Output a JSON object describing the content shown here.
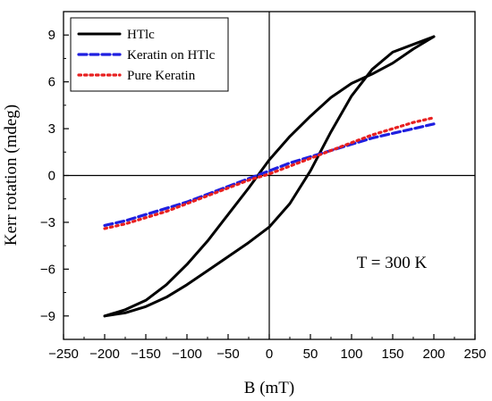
{
  "chart_data": {
    "type": "line",
    "title": "",
    "xlabel": "B (mT)",
    "ylabel": "Kerr rotation (mdeg)",
    "xlim": [
      -250,
      250
    ],
    "ylim": [
      -10.5,
      10.5
    ],
    "xticks": [
      -250,
      -200,
      -150,
      -100,
      -50,
      0,
      50,
      100,
      150,
      200,
      250
    ],
    "yticks": [
      -9,
      -6,
      -3,
      0,
      3,
      6,
      9
    ],
    "xtick_labels": [
      "−250",
      "−200",
      "−150",
      "−100",
      "−50",
      "0",
      "50",
      "100",
      "150",
      "200",
      "250"
    ],
    "ytick_labels": [
      "−9",
      "−6",
      "−3",
      "0",
      "3",
      "6",
      "9"
    ],
    "zero_lines": true,
    "grid": false,
    "legend_position": "top-left",
    "annotation": "T = 300 K",
    "series": [
      {
        "name": "HTlc",
        "color": "#000000",
        "style": "solid",
        "branches": [
          {
            "x": [
              -200,
              -175,
              -150,
              -125,
              -100,
              -75,
              -50,
              -25,
              0,
              25,
              50,
              75,
              100,
              125,
              150,
              175,
              200
            ],
            "y": [
              -9.0,
              -8.8,
              -8.4,
              -7.8,
              -7.0,
              -6.1,
              -5.2,
              -4.3,
              -3.3,
              -1.8,
              0.3,
              2.8,
              5.1,
              6.8,
              7.9,
              8.4,
              8.9
            ]
          },
          {
            "x": [
              200,
              175,
              150,
              125,
              100,
              75,
              50,
              25,
              0,
              -25,
              -50,
              -75,
              -100,
              -125,
              -150,
              -175,
              -200
            ],
            "y": [
              8.9,
              8.1,
              7.2,
              6.5,
              5.9,
              5.0,
              3.8,
              2.5,
              1.0,
              -0.8,
              -2.5,
              -4.2,
              -5.7,
              -7.0,
              -8.0,
              -8.6,
              -9.0
            ]
          }
        ]
      },
      {
        "name": "Keratin on HTlc",
        "color": "#1f1fe0",
        "style": "dashed",
        "x": [
          -200,
          -175,
          -150,
          -125,
          -100,
          -75,
          -50,
          -25,
          0,
          25,
          50,
          75,
          100,
          125,
          150,
          175,
          200
        ],
        "y": [
          -3.2,
          -2.9,
          -2.5,
          -2.1,
          -1.7,
          -1.2,
          -0.7,
          -0.2,
          0.3,
          0.8,
          1.2,
          1.6,
          2.0,
          2.4,
          2.7,
          3.0,
          3.3
        ]
      },
      {
        "name": "Pure Keratin",
        "color": "#e82020",
        "style": "dotted",
        "x": [
          -200,
          -175,
          -150,
          -125,
          -100,
          -75,
          -50,
          -25,
          0,
          25,
          50,
          75,
          100,
          125,
          150,
          175,
          200
        ],
        "y": [
          -3.4,
          -3.1,
          -2.7,
          -2.3,
          -1.8,
          -1.3,
          -0.8,
          -0.3,
          0.1,
          0.6,
          1.1,
          1.6,
          2.1,
          2.6,
          3.0,
          3.4,
          3.7
        ]
      }
    ]
  }
}
